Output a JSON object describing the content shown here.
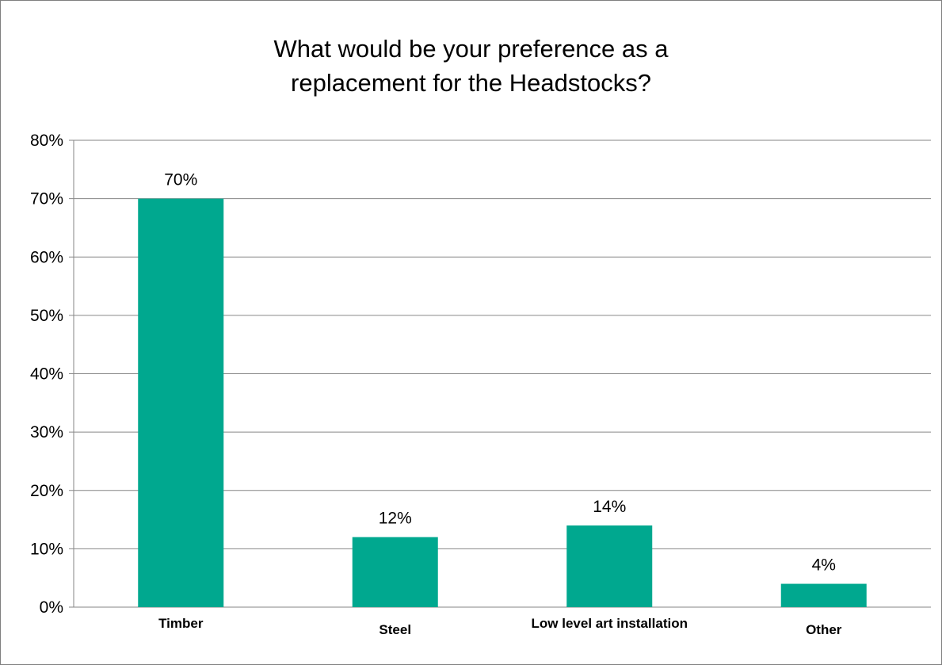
{
  "chart_data": {
    "type": "bar",
    "title_lines": [
      "What would be your preference as a",
      "replacement for the Headstocks?"
    ],
    "categories": [
      "Timber",
      "Steel",
      "Low level art installation",
      "Other"
    ],
    "values": [
      0.7,
      0.12,
      0.14,
      0.04
    ],
    "data_labels": [
      "70%",
      "12%",
      "14%",
      "4%"
    ],
    "y_ticks": [
      "0%",
      "10%",
      "20%",
      "30%",
      "40%",
      "50%",
      "60%",
      "70%",
      "80%"
    ],
    "ylim": [
      0,
      0.8
    ],
    "xlabel": "",
    "ylabel": "",
    "grid": true,
    "legend": "none",
    "bar_color": "#00a88f",
    "grid_color": "#868686"
  }
}
